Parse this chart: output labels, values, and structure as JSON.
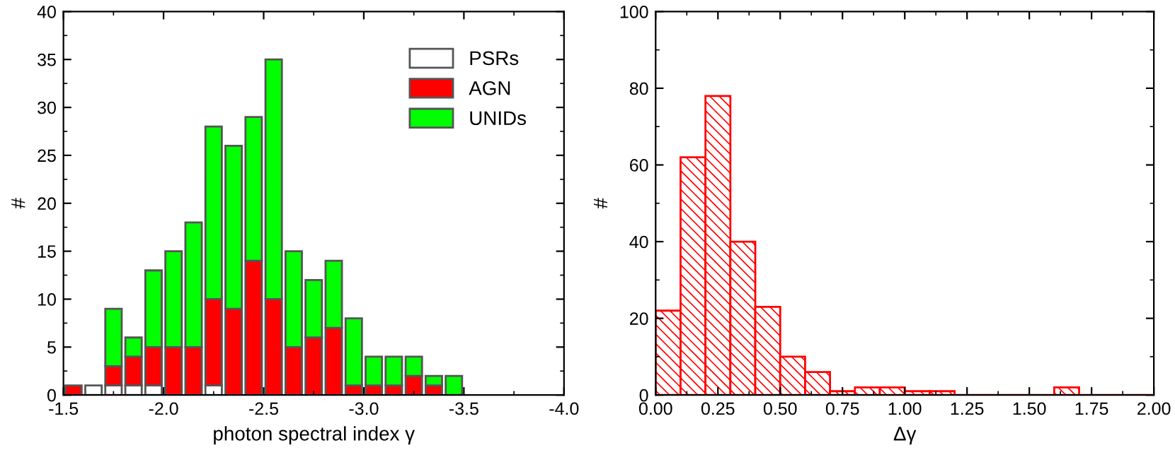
{
  "chart_data": [
    {
      "type": "bar",
      "xlabel": "photon spectral index γ",
      "ylabel": "#",
      "stacked": true,
      "legend": "top right",
      "x": [
        -1.55,
        -1.65,
        -1.75,
        -1.85,
        -1.95,
        -2.05,
        -2.15,
        -2.25,
        -2.35,
        -2.45,
        -2.55,
        -2.65,
        -2.75,
        -2.85,
        -2.95,
        -3.05,
        -3.15,
        -3.25,
        -3.35,
        -3.45
      ],
      "series": [
        {
          "name": "PSRs",
          "color": "#ffffff",
          "values": [
            0,
            1,
            1,
            1,
            1,
            0,
            0,
            1,
            0,
            0,
            0,
            0,
            0,
            0,
            0,
            0,
            0,
            0,
            0,
            0
          ]
        },
        {
          "name": "AGN",
          "color": "#ff0000",
          "values": [
            1,
            0,
            2,
            3,
            4,
            5,
            5,
            9,
            9,
            14,
            10,
            5,
            6,
            7,
            1,
            1,
            1,
            2,
            1,
            0
          ]
        },
        {
          "name": "UNIDs",
          "color": "#00ff00",
          "values": [
            0,
            0,
            6,
            2,
            8,
            10,
            13,
            18,
            17,
            15,
            25,
            10,
            6,
            7,
            7,
            3,
            3,
            2,
            1,
            2
          ]
        }
      ],
      "xlim": [
        -1.5,
        -4.0
      ],
      "xticks": [
        -1.5,
        {
          "value": -2.0,
          "label": "-2.0"
        },
        -2.5,
        {
          "value": -3.0,
          "label": "-3.0"
        },
        -3.5,
        {
          "value": -4.0,
          "label": "-4.0"
        }
      ],
      "ylim": [
        0,
        40
      ],
      "yticks": [
        0,
        5,
        10,
        15,
        20,
        25,
        30,
        35,
        40
      ]
    },
    {
      "type": "histogram",
      "xlabel": "Δγ",
      "ylabel": "#",
      "bins": [
        0,
        0.1,
        0.2,
        0.3,
        0.4,
        0.5,
        0.6,
        0.7,
        0.8,
        0.9,
        1.0,
        1.1,
        1.2,
        1.3,
        1.4,
        1.5,
        1.6,
        1.7,
        1.8,
        1.9,
        2.0
      ],
      "values": [
        22,
        62,
        78,
        40,
        23,
        10,
        6,
        1,
        2,
        2,
        1,
        1,
        0,
        0,
        0,
        0,
        2,
        0,
        0,
        0
      ],
      "color": "#ff0000",
      "xlim": [
        0,
        2
      ],
      "xticks": [
        {
          "value": 0,
          "label": "0.00"
        },
        {
          "value": 0.25,
          "label": "0.25"
        },
        {
          "value": 0.5,
          "label": "0.50"
        },
        {
          "value": 0.75,
          "label": "0.75"
        },
        {
          "value": 1,
          "label": "1.00"
        },
        {
          "value": 1.25,
          "label": "1.25"
        },
        {
          "value": 1.5,
          "label": "1.50"
        },
        {
          "value": 1.75,
          "label": "1.75"
        },
        {
          "value": 2,
          "label": "2.00"
        }
      ],
      "ylim": [
        0,
        100
      ],
      "yticks": [
        0,
        20,
        40,
        60,
        80,
        100
      ]
    }
  ]
}
